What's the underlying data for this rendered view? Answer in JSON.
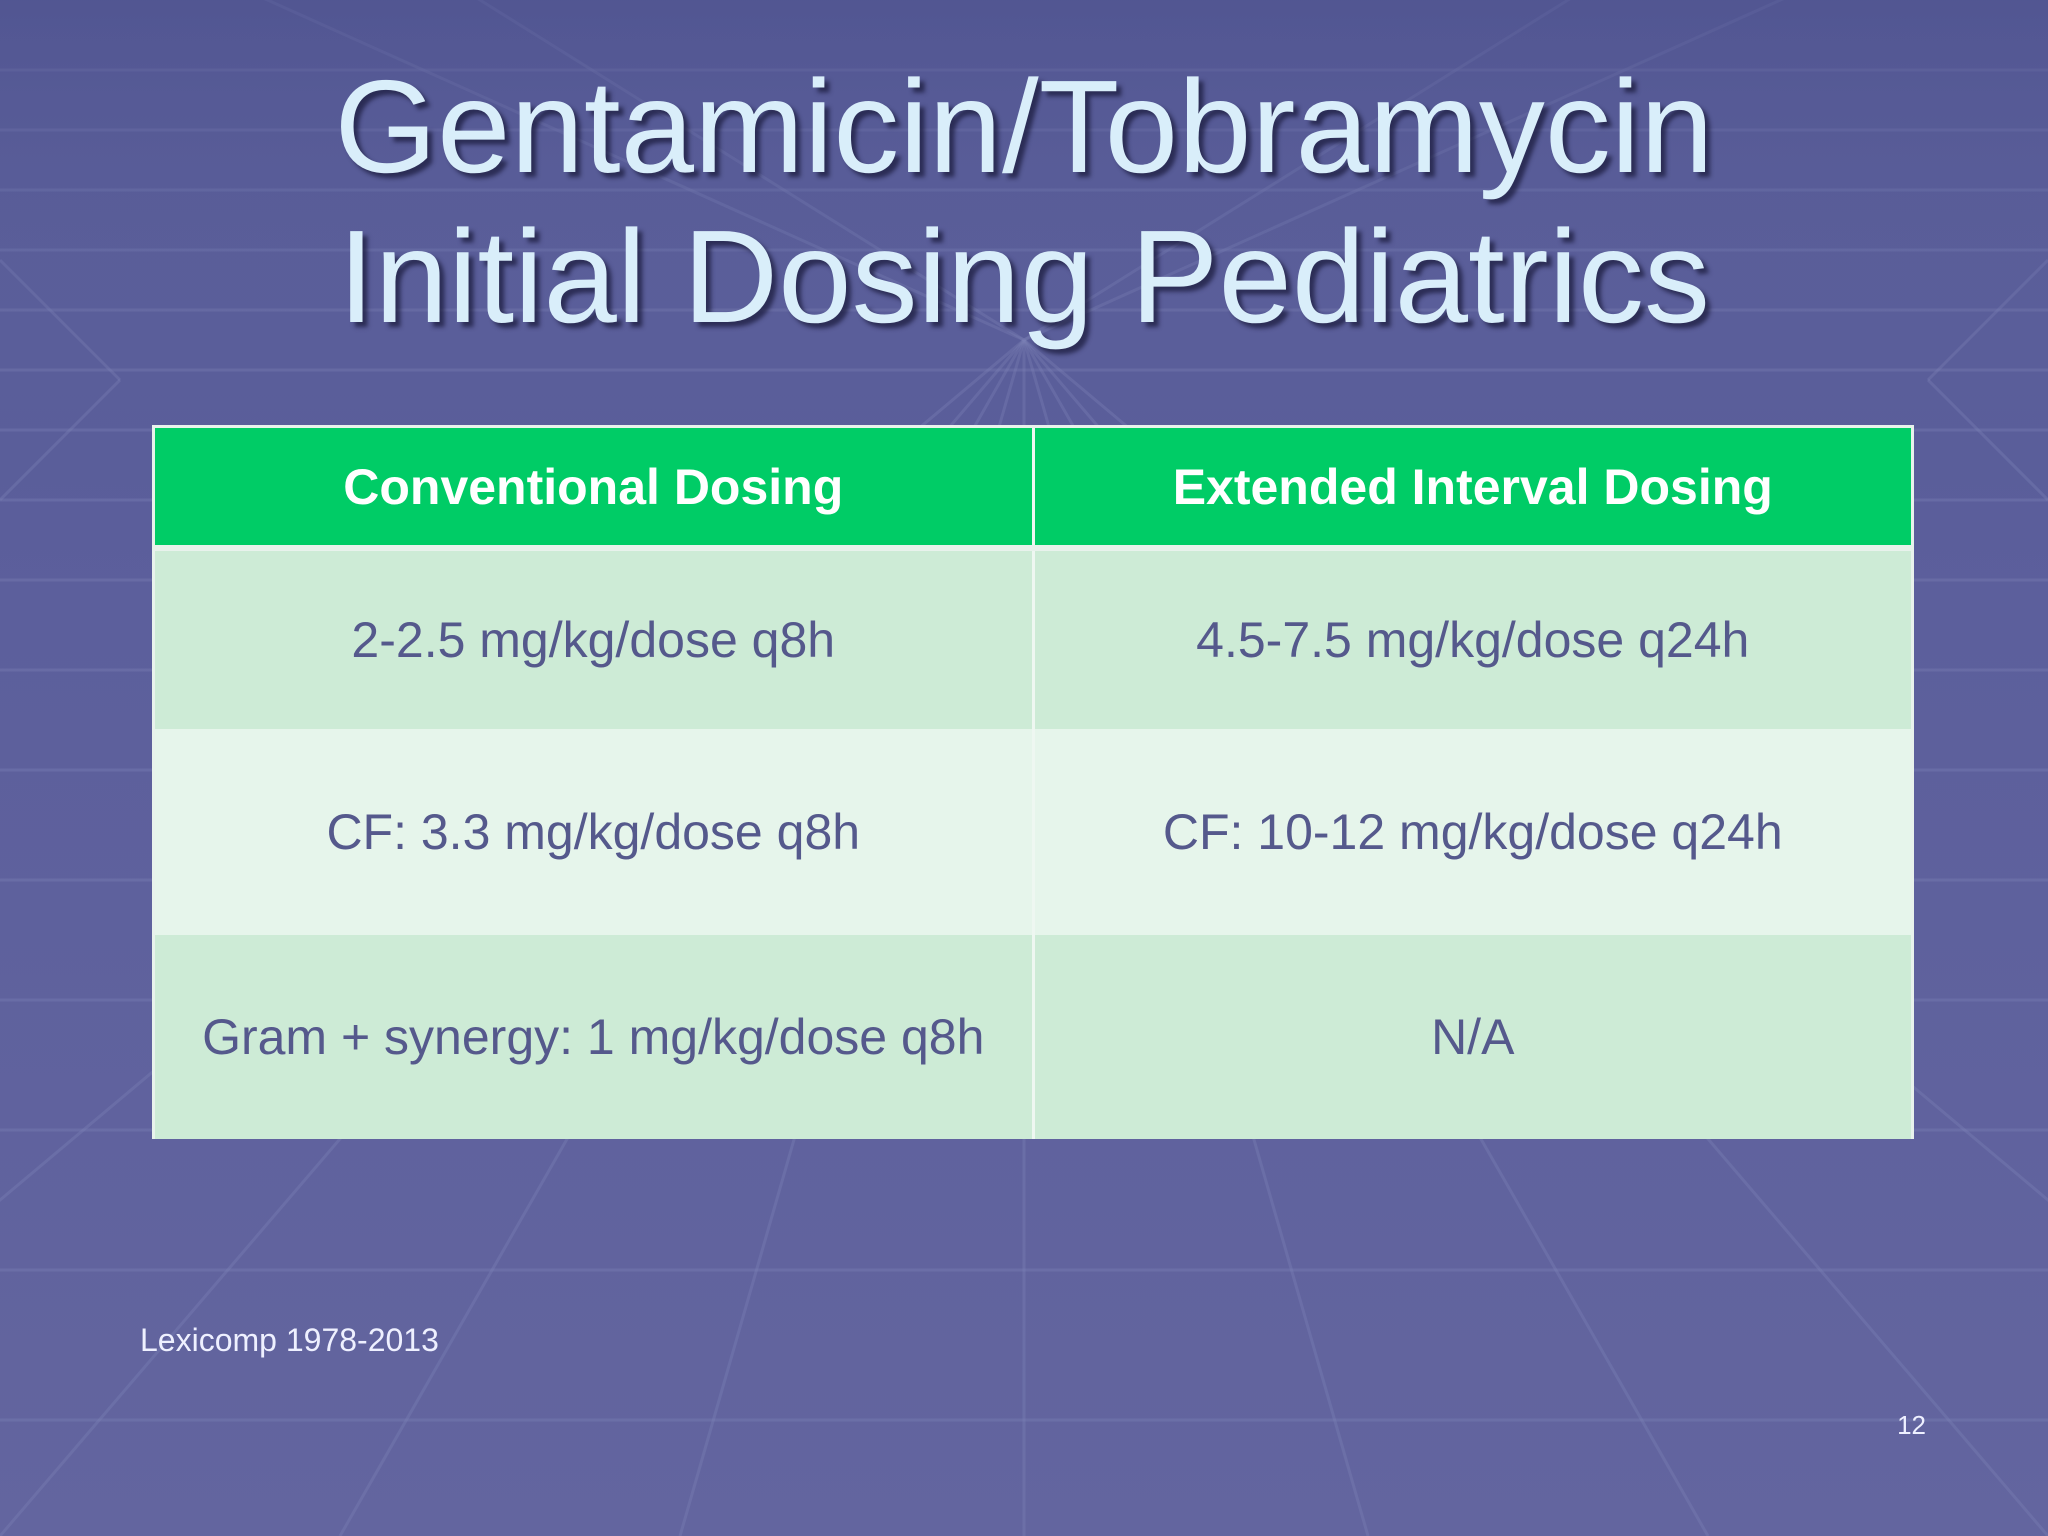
{
  "slide": {
    "title_line1": "Gentamicin/Tobramycin",
    "title_line2": "Initial Dosing Pediatrics",
    "table": {
      "headers": [
        "Conventional Dosing",
        "Extended Interval Dosing"
      ],
      "rows": [
        [
          "2-2.5 mg/kg/dose q8h",
          "4.5-7.5 mg/kg/dose q24h"
        ],
        [
          "CF: 3.3 mg/kg/dose q8h",
          "CF: 10-12 mg/kg/dose q24h"
        ],
        [
          "Gram + synergy: 1 mg/kg/dose q8h",
          "N/A"
        ]
      ]
    },
    "citation": "Lexicomp 1978-2013",
    "page_number": "12"
  },
  "colors": {
    "background": "#5c5f9c",
    "title_text": "#d9eefa",
    "header_fill": "#00cc66",
    "row_fill_dark": "#cdebd6",
    "row_fill_light": "#e6f5eb",
    "cell_text": "#55598c"
  }
}
